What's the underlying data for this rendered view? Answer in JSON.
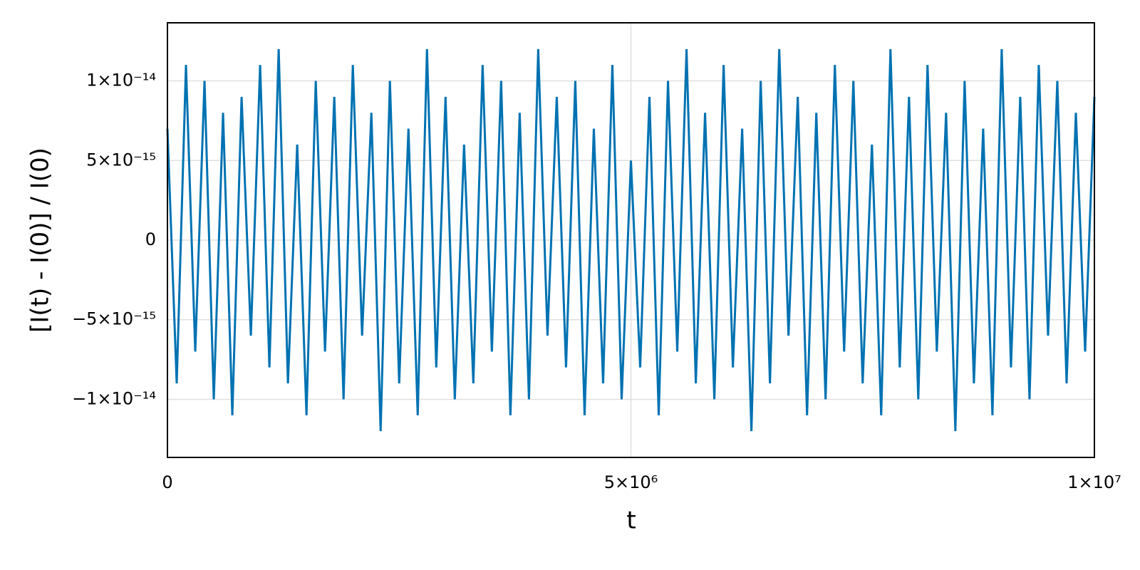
{
  "chart_data": {
    "type": "line",
    "xlabel": "t",
    "ylabel": "[I(t) - I(0)] / I(0)",
    "x": [
      0,
      100000,
      200000,
      300000,
      400000,
      500000,
      600000,
      700000,
      800000,
      900000,
      1000000,
      1100000,
      1200000,
      1300000,
      1400000,
      1500000,
      1600000,
      1700000,
      1800000,
      1900000,
      2000000,
      2100000,
      2200000,
      2300000,
      2400000,
      2500000,
      2600000,
      2700000,
      2800000,
      2900000,
      3000000,
      3100000,
      3200000,
      3300000,
      3400000,
      3500000,
      3600000,
      3700000,
      3800000,
      3900000,
      4000000,
      4100000,
      4200000,
      4300000,
      4400000,
      4500000,
      4600000,
      4700000,
      4800000,
      4900000,
      5000000,
      5100000,
      5200000,
      5300000,
      5400000,
      5500000,
      5600000,
      5700000,
      5800000,
      5900000,
      6000000,
      6100000,
      6200000,
      6300000,
      6400000,
      6500000,
      6600000,
      6700000,
      6800000,
      6900000,
      7000000,
      7100000,
      7200000,
      7300000,
      7400000,
      7500000,
      7600000,
      7700000,
      7800000,
      7900000,
      8000000,
      8100000,
      8200000,
      8300000,
      8400000,
      8500000,
      8600000,
      8700000,
      8800000,
      8900000,
      9000000,
      9100000,
      9200000,
      9300000,
      9400000,
      9500000,
      9600000,
      9700000,
      9800000,
      9900000,
      10000000
    ],
    "series": [
      {
        "name": "I",
        "color": "#0072b2",
        "values": [
          7e-15,
          -9e-15,
          1.1e-14,
          -7e-15,
          1e-14,
          -1e-14,
          8e-15,
          -1.1e-14,
          9e-15,
          -6e-15,
          1.1e-14,
          -8e-15,
          1.2e-14,
          -9e-15,
          6e-15,
          -1.1e-14,
          1e-14,
          -7e-15,
          9e-15,
          -1e-14,
          1.1e-14,
          -6e-15,
          8e-15,
          -1.2e-14,
          1e-14,
          -9e-15,
          7e-15,
          -1.1e-14,
          1.2e-14,
          -8e-15,
          9e-15,
          -1e-14,
          6e-15,
          -9e-15,
          1.1e-14,
          -7e-15,
          1e-14,
          -1.1e-14,
          8e-15,
          -1e-14,
          1.2e-14,
          -6e-15,
          9e-15,
          -8e-15,
          1e-14,
          -1.1e-14,
          7e-15,
          -9e-15,
          1.1e-14,
          -1e-14,
          5e-15,
          -8e-15,
          9e-15,
          -1.1e-14,
          1e-14,
          -7e-15,
          1.2e-14,
          -9e-15,
          8e-15,
          -1e-14,
          1.1e-14,
          -8e-15,
          7e-15,
          -1.2e-14,
          1e-14,
          -9e-15,
          1.2e-14,
          -6e-15,
          9e-15,
          -1.1e-14,
          8e-15,
          -1e-14,
          1.1e-14,
          -7e-15,
          1e-14,
          -9e-15,
          6e-15,
          -1.1e-14,
          1.2e-14,
          -8e-15,
          9e-15,
          -1e-14,
          1.1e-14,
          -7e-15,
          8e-15,
          -1.2e-14,
          1e-14,
          -9e-15,
          7e-15,
          -1.1e-14,
          1.2e-14,
          -8e-15,
          9e-15,
          -1e-14,
          1.1e-14,
          -6e-15,
          1e-14,
          -9e-15,
          8e-15,
          -7e-15,
          9e-15
        ]
      }
    ],
    "xlim": [
      0,
      10000000
    ],
    "xticks": [
      0,
      {
        "value": 5000000,
        "label": "5×10⁶"
      },
      {
        "value": 10000000,
        "label": "1×10⁷"
      }
    ],
    "ylim": [
      -1.365e-14,
      1.365e-14
    ],
    "yticks": [
      {
        "value": -1e-14,
        "label": "−1×10⁻¹⁴"
      },
      {
        "value": -5e-15,
        "label": "−5×10⁻¹⁵"
      },
      0,
      {
        "value": 5e-15,
        "label": "5×10⁻¹⁵"
      },
      {
        "value": 1e-14,
        "label": "1×10⁻¹⁴"
      }
    ],
    "grid": true
  }
}
